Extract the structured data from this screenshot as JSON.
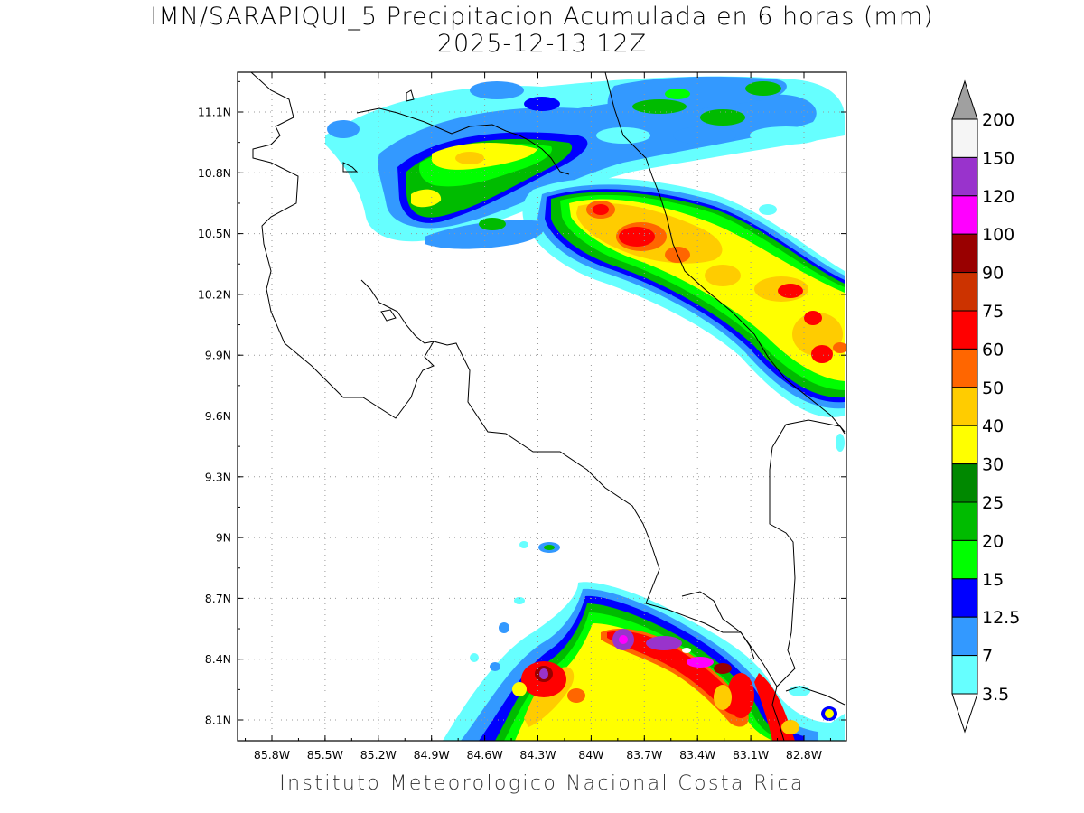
{
  "title_line1": "IMN/SARAPIQUI_5 Precipitacion Acumulada en 6 horas (mm)",
  "title_line2": "2025-12-13 12Z",
  "footer": "Instituto Meteorologico Nacional Costa Rica",
  "map": {
    "lon_range": [
      -86.0,
      -83.0
    ],
    "lat_range": [
      8.0,
      11.3
    ],
    "x_ticks": [
      "85.8W",
      "85.5W",
      "85.2W",
      "84.9W",
      "84.6W",
      "84.3W",
      "84W",
      "83.7W",
      "83.4W",
      "83.1W",
      "82.8W"
    ],
    "y_ticks": [
      "11.1N",
      "10.8N",
      "10.5N",
      "10.2N",
      "9.9N",
      "9.6N",
      "9.3N",
      "9N",
      "8.7N",
      "8.4N",
      "8.1N"
    ],
    "grid": true
  },
  "colorbar": {
    "labels": [
      "200",
      "150",
      "120",
      "100",
      "90",
      "75",
      "60",
      "50",
      "40",
      "30",
      "25",
      "20",
      "15",
      "12.5",
      "7",
      "3.5"
    ],
    "colors": [
      "#a0a0a0",
      "#f5f5f5",
      "#9933cc",
      "#ff00ff",
      "#990000",
      "#cc3300",
      "#ff0000",
      "#ff6600",
      "#ffcc00",
      "#ffff00",
      "#008800",
      "#00bb00",
      "#00ff00",
      "#0000ff",
      "#3399ff",
      "#66ffff"
    ],
    "extend_top_color": "#a0a0a0",
    "extend_bottom_color": "#ffffff"
  }
}
